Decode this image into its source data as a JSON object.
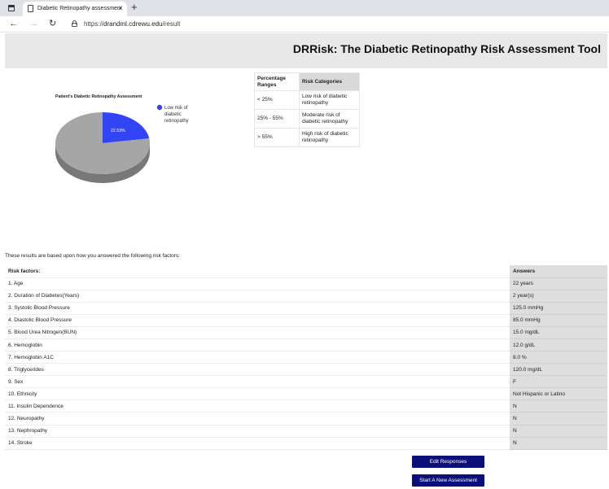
{
  "browser": {
    "tab_title": "Diabetic Retinopathy assessment",
    "tab_close": "×",
    "new_tab": "+",
    "url_scheme": "https://",
    "url_host": "drandml.cdrewu.edu",
    "url_path": "/result",
    "icons": [
      "window-menu-icon",
      "document-icon",
      "back-arrow-icon",
      "forward-arrow-icon",
      "reload-icon",
      "lock-icon"
    ]
  },
  "header": {
    "title": "DRRisk: The Diabetic Retinopathy Risk Assessment Tool"
  },
  "chart_data": {
    "type": "pie",
    "title": "Patient's Diabetic Retinopathy Assessment",
    "slices": [
      {
        "label": "Low risk of diabetic retinopathy",
        "value": 22.53,
        "color": "#3344f5",
        "data_label": "22.53%"
      },
      {
        "label": "",
        "value": 77.47,
        "color": "#a6a6a6"
      }
    ],
    "legend": [
      "Low risk of diabetic retinopathy"
    ],
    "legend_placement": "right",
    "style": "3d"
  },
  "categories_table": {
    "headers": [
      "Percentage Ranges",
      "Risk Categories"
    ],
    "rows": [
      [
        "< 25%",
        "Low risk of diabetic retinopathy"
      ],
      [
        "25% - 55%",
        "Moderate risk of diabetic retinopathy"
      ],
      [
        "> 55%",
        "High risk of diabetic retinopathy"
      ]
    ]
  },
  "intro_text": "These results are based upon how you answered the following risk factors:",
  "risk_table": {
    "headers": [
      "Risk factors:",
      "Answers"
    ],
    "rows": [
      [
        "1. Age",
        "22 years"
      ],
      [
        "2. Duration of Diabetes(Years)",
        "2 year(s)"
      ],
      [
        "3. Systolic Blood Pressure",
        "125.0 mmHg"
      ],
      [
        "4. Diastolic Blood Pressure",
        "85.0 mmHg"
      ],
      [
        "5. Blood Urea Nitrogen(BUN)",
        "15.0 mg/dL"
      ],
      [
        "6. Hemoglobin",
        "12.0 g/dL"
      ],
      [
        "7. Hemoglobin A1C",
        "8.0 %"
      ],
      [
        "8. Triglycerides",
        "120.0 mg/dL"
      ],
      [
        "9. Sex",
        "F"
      ],
      [
        "10. Ethnicity",
        "Not Hispanic or Latino"
      ],
      [
        "11. Insulin Dependence",
        "N"
      ],
      [
        "12. Neuropathy",
        "N"
      ],
      [
        "13. Nephropathy",
        "N"
      ],
      [
        "14. Stroke",
        "N"
      ]
    ]
  },
  "buttons": {
    "edit": "Edit Responses",
    "new": "Start A New Assessment"
  }
}
